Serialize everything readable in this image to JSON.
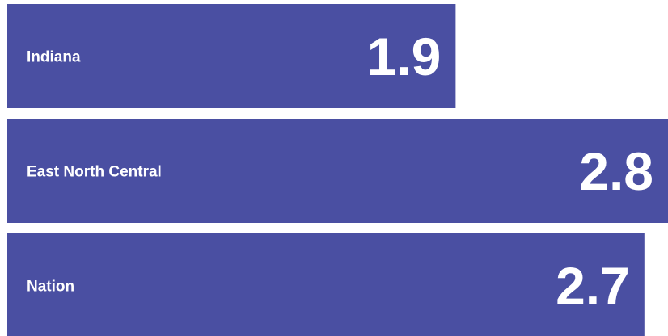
{
  "chart_data": {
    "type": "bar",
    "orientation": "horizontal",
    "categories": [
      "Indiana",
      "East North Central",
      "Nation"
    ],
    "values": [
      1.9,
      2.8,
      2.7
    ],
    "color": "#4a4fa2"
  }
}
